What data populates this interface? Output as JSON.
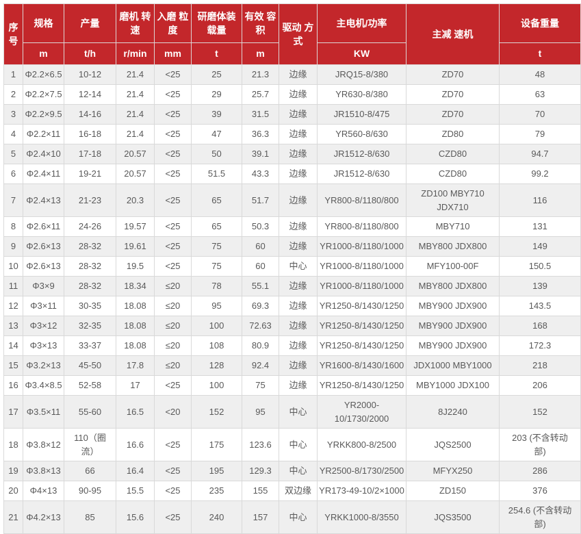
{
  "colors": {
    "header_bg": "#c3272b",
    "header_text": "#ffffff",
    "row_alt_bg": "#efefef",
    "body_text": "#595959",
    "border": "#d9d9d9"
  },
  "table": {
    "header": {
      "serial": "序号",
      "spec": "规格",
      "spec_unit": "m",
      "output": "产量",
      "output_unit": "t/h",
      "mill_speed": "磨机 转速",
      "mill_speed_unit": "r/min",
      "feed_size": "入磨 粒度",
      "feed_size_unit": "mm",
      "media_load": "研磨体装载量",
      "media_load_unit": "t",
      "effective_volume": "有效 容积",
      "effective_volume_unit": "m",
      "drive_mode": "驱动 方式",
      "main_motor": "主电机/功率",
      "main_motor_unit": "KW",
      "reducer": "主减 速机",
      "weight": "设备重量",
      "weight_unit": "t"
    },
    "rows": [
      [
        "1",
        "Φ2.2×6.5",
        "10-12",
        "21.4",
        "<25",
        "25",
        "21.3",
        "边缘",
        "JRQ15-8/380",
        "ZD70",
        "48"
      ],
      [
        "2",
        "Φ2.2×7.5",
        "12-14",
        "21.4",
        "<25",
        "29",
        "25.7",
        "边缘",
        "YR630-8/380",
        "ZD70",
        "63"
      ],
      [
        "3",
        "Φ2.2×9.5",
        "14-16",
        "21.4",
        "<25",
        "39",
        "31.5",
        "边缘",
        "JR1510-8/475",
        "ZD70",
        "70"
      ],
      [
        "4",
        "Φ2.2×11",
        "16-18",
        "21.4",
        "<25",
        "47",
        "36.3",
        "边缘",
        "YR560-8/630",
        "ZD80",
        "79"
      ],
      [
        "5",
        "Φ2.4×10",
        "17-18",
        "20.57",
        "<25",
        "50",
        "39.1",
        "边缘",
        "JR1512-8/630",
        "CZD80",
        "94.7"
      ],
      [
        "6",
        "Φ2.4×11",
        "19-21",
        "20.57",
        "<25",
        "51.5",
        "43.3",
        "边缘",
        "JR1512-8/630",
        "CZD80",
        "99.2"
      ],
      [
        "7",
        "Φ2.4×13",
        "21-23",
        "20.3",
        "<25",
        "65",
        "51.7",
        "边缘",
        "YR800-8/1180/800",
        "ZD100 MBY710\nJDX710",
        "116"
      ],
      [
        "8",
        "Φ2.6×11",
        "24-26",
        "19.57",
        "<25",
        "65",
        "50.3",
        "边缘",
        "YR800-8/1180/800",
        "MBY710",
        "131"
      ],
      [
        "9",
        "Φ2.6×13",
        "28-32",
        "19.61",
        "<25",
        "75",
        "60",
        "边缘",
        "YR1000-8/1180/1000",
        "MBY800 JDX800",
        "149"
      ],
      [
        "10",
        "Φ2.6×13",
        "28-32",
        "19.5",
        "<25",
        "75",
        "60",
        "中心",
        "YR1000-8/1180/1000",
        "MFY100-00F",
        "150.5"
      ],
      [
        "11",
        "Φ3×9",
        "28-32",
        "18.34",
        "≤20",
        "78",
        "55.1",
        "边缘",
        "YR1000-8/1180/1000",
        "MBY800 JDX800",
        "139"
      ],
      [
        "12",
        "Φ3×11",
        "30-35",
        "18.08",
        "≤20",
        "95",
        "69.3",
        "边缘",
        "YR1250-8/1430/1250",
        "MBY900 JDX900",
        "143.5"
      ],
      [
        "13",
        "Φ3×12",
        "32-35",
        "18.08",
        "≤20",
        "100",
        "72.63",
        "边缘",
        "YR1250-8/1430/1250",
        "MBY900 JDX900",
        "168"
      ],
      [
        "14",
        "Φ3×13",
        "33-37",
        "18.08",
        "≤20",
        "108",
        "80.9",
        "边缘",
        "YR1250-8/1430/1250",
        "MBY900 JDX900",
        "172.3"
      ],
      [
        "15",
        "Φ3.2×13",
        "45-50",
        "17.8",
        "≤20",
        "128",
        "92.4",
        "边缘",
        "YR1600-8/1430/1600",
        "JDX1000 MBY1000",
        "218"
      ],
      [
        "16",
        "Φ3.4×8.5",
        "52-58",
        "17",
        "<25",
        "100",
        "75",
        "边缘",
        "YR1250-8/1430/1250",
        "MBY1000 JDX100",
        "206"
      ],
      [
        "17",
        "Φ3.5×11",
        "55-60",
        "16.5",
        "<20",
        "152",
        "95",
        "中心",
        "YR2000-\n10/1730/2000",
        "8J2240",
        "152"
      ],
      [
        "18",
        "Φ3.8×12",
        "110（圈\n流）",
        "16.6",
        "<25",
        "175",
        "123.6",
        "中心",
        "YRKK800-8/2500",
        "JQS2500",
        "203 (不含转动\n部)"
      ],
      [
        "19",
        "Φ3.8×13",
        "66",
        "16.4",
        "<25",
        "195",
        "129.3",
        "中心",
        "YR2500-8/1730/2500",
        "MFYX250",
        "286"
      ],
      [
        "20",
        "Φ4×13",
        "90-95",
        "15.5",
        "<25",
        "235",
        "155",
        "双边缘",
        "YR173-49-10/2×1000",
        "ZD150",
        "376"
      ],
      [
        "21",
        "Φ4.2×13",
        "85",
        "15.6",
        "<25",
        "240",
        "157",
        "中心",
        "YRKK1000-8/3550",
        "JQS3500",
        "254.6 (不含转动\n部)"
      ]
    ]
  }
}
